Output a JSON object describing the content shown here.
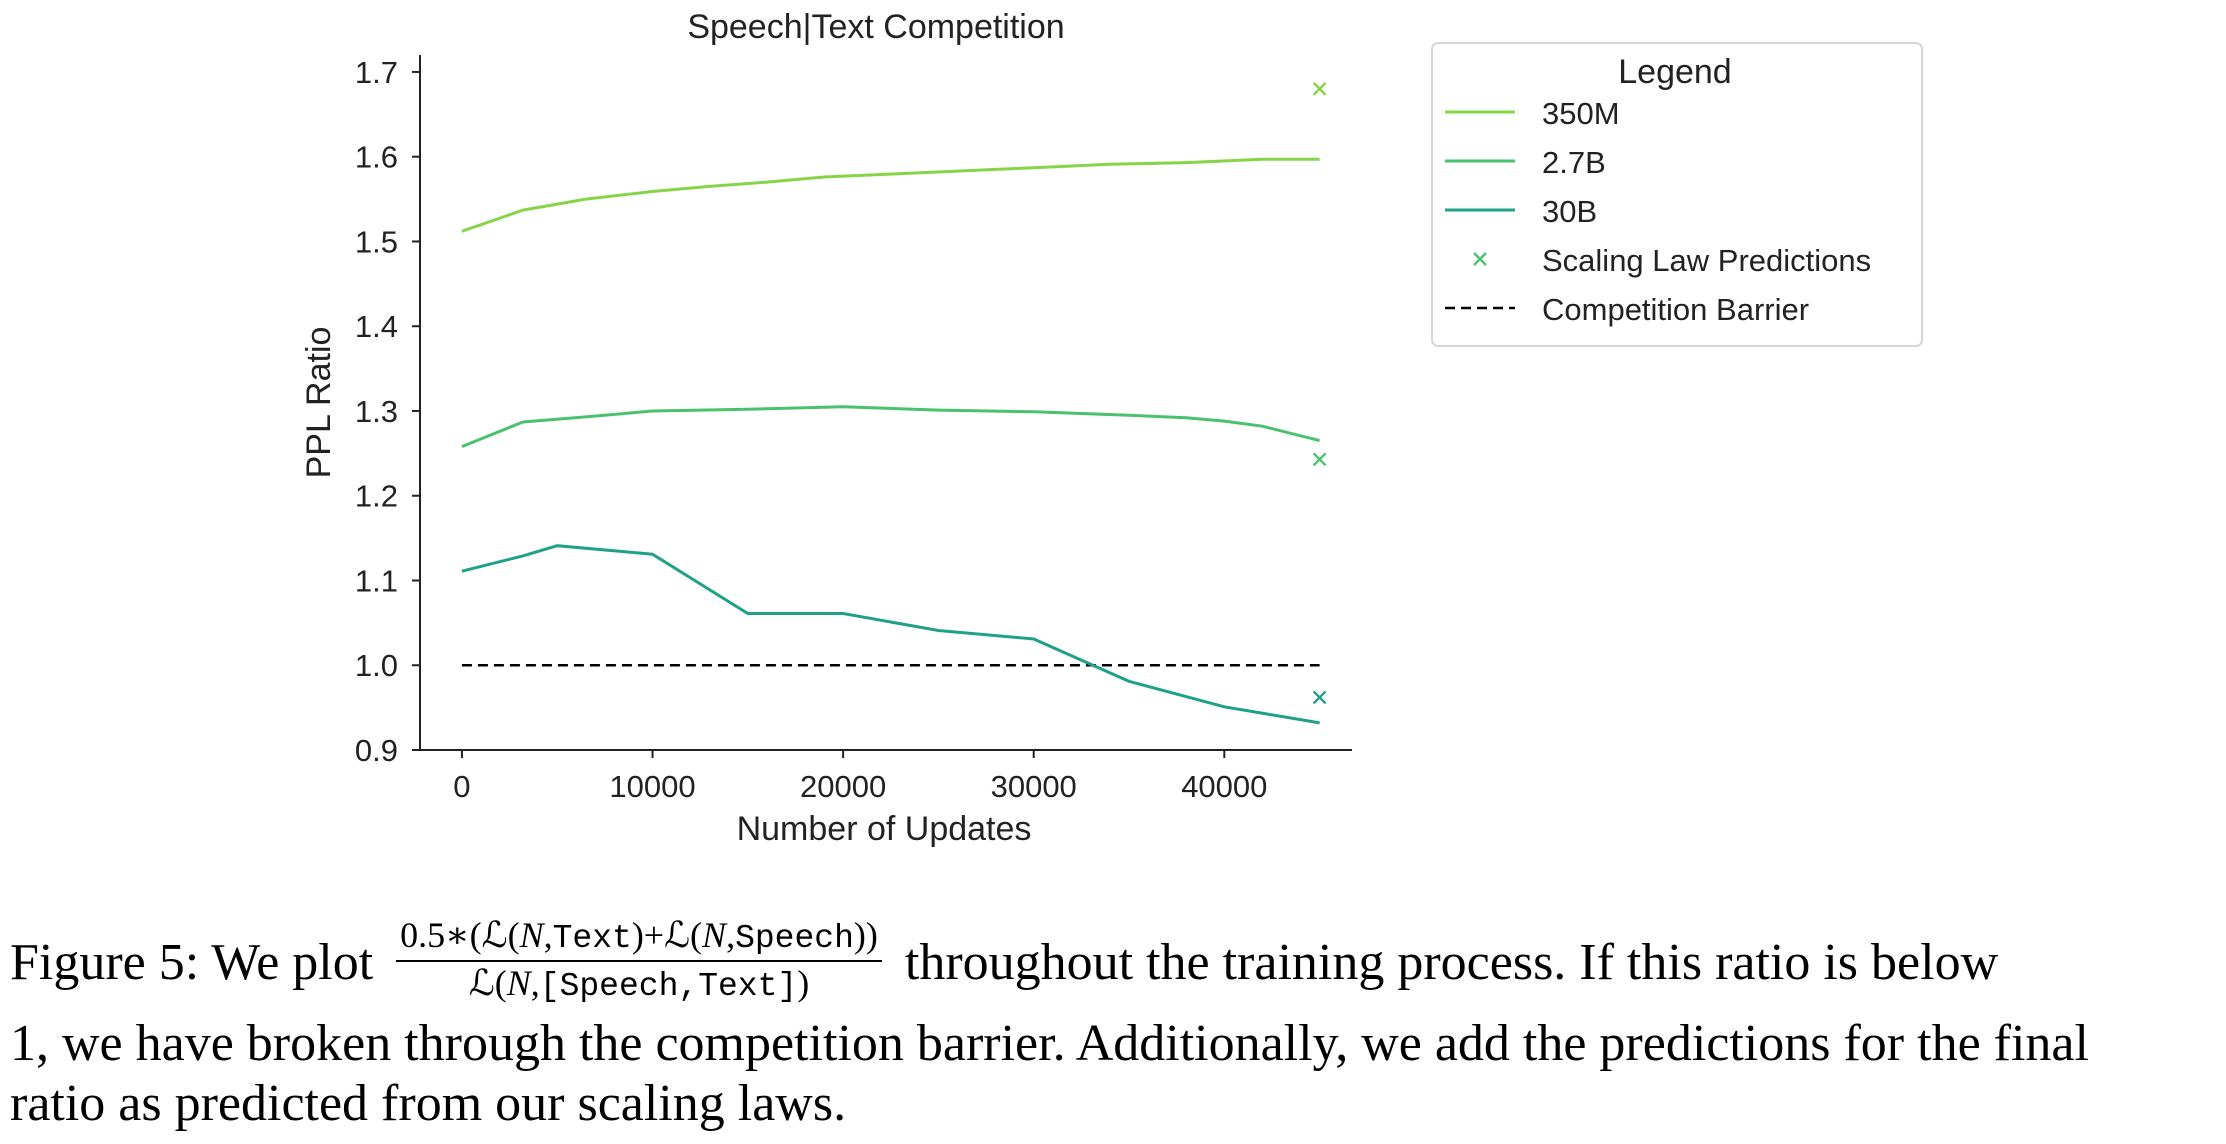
{
  "chart_data": {
    "type": "line",
    "title": "Speech|Text Competition",
    "xlabel": "Number of Updates",
    "ylabel": "PPL Ratio",
    "xlim": [
      -2200,
      46700
    ],
    "ylim": [
      0.9,
      1.72
    ],
    "x_ticks": [
      0,
      10000,
      20000,
      30000,
      40000
    ],
    "y_ticks": [
      0.9,
      1.0,
      1.1,
      1.2,
      1.3,
      1.4,
      1.5,
      1.6,
      1.7
    ],
    "grid": false,
    "series": [
      {
        "name": "350M",
        "color": "#86d549",
        "x": [
          0,
          3200,
          6500,
          10000,
          13000,
          16000,
          19000,
          22000,
          25000,
          28000,
          31000,
          34000,
          38000,
          42000,
          45000
        ],
        "y": [
          1.512,
          1.537,
          1.55,
          1.559,
          1.565,
          1.57,
          1.576,
          1.579,
          1.582,
          1.585,
          1.588,
          1.591,
          1.593,
          1.597,
          1.597
        ]
      },
      {
        "name": "2.7B",
        "color": "#4ac16d",
        "x": [
          0,
          3200,
          6500,
          10000,
          15000,
          20000,
          25000,
          30000,
          35000,
          38000,
          40000,
          42000,
          45000
        ],
        "y": [
          1.258,
          1.287,
          1.293,
          1.3,
          1.302,
          1.305,
          1.301,
          1.299,
          1.295,
          1.292,
          1.288,
          1.282,
          1.265
        ]
      },
      {
        "name": "30B",
        "color": "#1fa187",
        "x": [
          0,
          3200,
          5000,
          10000,
          15000,
          20000,
          25000,
          30000,
          35000,
          40000,
          45000
        ],
        "y": [
          1.111,
          1.129,
          1.141,
          1.131,
          1.061,
          1.061,
          1.041,
          1.031,
          0.981,
          0.951,
          0.932
        ]
      }
    ],
    "scaling_law_predictions": {
      "name": "Scaling Law Predictions",
      "marker": "x",
      "points": [
        {
          "x": 45000,
          "y": 1.68,
          "color": "#86d549"
        },
        {
          "x": 45000,
          "y": 1.243,
          "color": "#4ac16d"
        },
        {
          "x": 45000,
          "y": 0.962,
          "color": "#1fa187"
        }
      ]
    },
    "competition_barrier": {
      "name": "Competition Barrier",
      "x": [
        0,
        45000
      ],
      "y": 1.0,
      "color": "#000000",
      "style": "dashed"
    },
    "legend": {
      "title": "Legend",
      "placement": "outside-right",
      "entries": [
        "350M",
        "2.7B",
        "30B",
        "Scaling Law Predictions",
        "Competition Barrier"
      ]
    }
  },
  "caption": {
    "label": "Figure 5:",
    "text_before_formula": "We plot",
    "formula": {
      "num_prefix": "0.5∗(",
      "L": "ℒ",
      "N": "N",
      "text": "Text",
      "speech": "Speech",
      "speech_text": "[Speech,Text]"
    },
    "text_after_formula": "throughout the training process. If this ratio is below",
    "line2": "1, we have broken through the competition barrier. Additionally, we add the predictions for the final",
    "line3": "ratio as predicted from our scaling laws."
  }
}
